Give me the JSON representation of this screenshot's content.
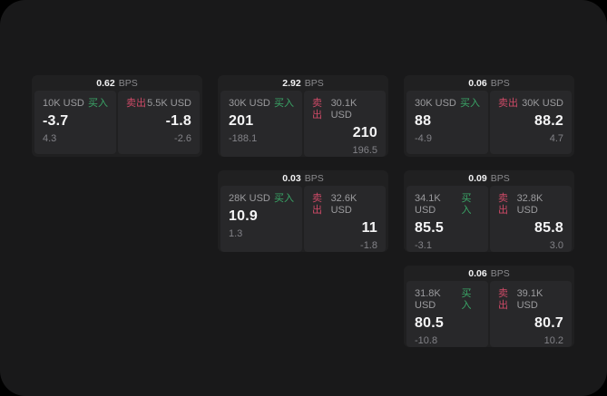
{
  "labels": {
    "bps_unit": "BPS",
    "buy": "买入",
    "sell": "卖出"
  },
  "colors": {
    "buy_green": "#3aa667",
    "sell_red": "#ce4a67",
    "window_bg": "#19191a",
    "card_bg": "#202021",
    "tile_bg": "#28282a"
  },
  "cards": [
    {
      "bps": "0.62",
      "col": 1,
      "row": 1,
      "buy": {
        "amount": "10K USD",
        "price": "-3.7",
        "delta": "4.3"
      },
      "sell": {
        "amount": "5.5K USD",
        "price": "-1.8",
        "delta": "-2.6"
      }
    },
    {
      "bps": "2.92",
      "col": 2,
      "row": 1,
      "buy": {
        "amount": "30K USD",
        "price": "201",
        "delta": "-188.1"
      },
      "sell": {
        "amount": "30.1K USD",
        "price": "210",
        "delta": "196.5"
      }
    },
    {
      "bps": "0.06",
      "col": 3,
      "row": 1,
      "buy": {
        "amount": "30K USD",
        "price": "88",
        "delta": "-4.9"
      },
      "sell": {
        "amount": "30K USD",
        "price": "88.2",
        "delta": "4.7"
      }
    },
    {
      "bps": "0.03",
      "col": 2,
      "row": 2,
      "buy": {
        "amount": "28K USD",
        "price": "10.9",
        "delta": "1.3"
      },
      "sell": {
        "amount": "32.6K USD",
        "price": "11",
        "delta": "-1.8"
      }
    },
    {
      "bps": "0.09",
      "col": 3,
      "row": 2,
      "buy": {
        "amount": "34.1K USD",
        "price": "85.5",
        "delta": "-3.1"
      },
      "sell": {
        "amount": "32.8K USD",
        "price": "85.8",
        "delta": "3.0"
      }
    },
    {
      "bps": "0.06",
      "col": 3,
      "row": 3,
      "buy": {
        "amount": "31.8K USD",
        "price": "80.5",
        "delta": "-10.8"
      },
      "sell": {
        "amount": "39.1K USD",
        "price": "80.7",
        "delta": "10.2"
      }
    }
  ]
}
